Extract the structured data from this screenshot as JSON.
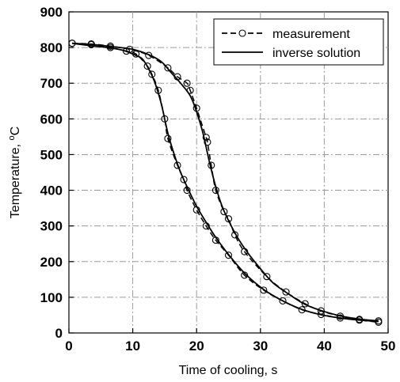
{
  "chart_data": {
    "type": "line",
    "xlabel": "Time of cooling, s",
    "ylabel_main": "Temperature, ",
    "ylabel_sup": "o",
    "ylabel_unit": "C",
    "xlim": [
      0,
      50
    ],
    "ylim": [
      0,
      900
    ],
    "x_ticks": [
      0,
      10,
      20,
      30,
      40,
      50
    ],
    "y_ticks": [
      0,
      100,
      200,
      300,
      400,
      500,
      600,
      700,
      800,
      900
    ],
    "grid": true,
    "legend_position": "top-right",
    "legend": [
      {
        "label": "measurement",
        "style": "dashed-circle"
      },
      {
        "label": "inverse solution",
        "style": "solid"
      }
    ],
    "series": [
      {
        "name": "measurement",
        "curve": "early",
        "points": [
          [
            0.5,
            812
          ],
          [
            3.5,
            808
          ],
          [
            6.5,
            800
          ],
          [
            9,
            790
          ],
          [
            10.5,
            782
          ],
          [
            12.3,
            748
          ],
          [
            13,
            725
          ],
          [
            14,
            680
          ],
          [
            15,
            600
          ],
          [
            15.5,
            545
          ],
          [
            17,
            470
          ],
          [
            18,
            430
          ],
          [
            18.5,
            400
          ],
          [
            20,
            345
          ],
          [
            21.5,
            300
          ],
          [
            23,
            260
          ],
          [
            25,
            218
          ],
          [
            27.5,
            162
          ],
          [
            30.5,
            120
          ],
          [
            33.5,
            90
          ],
          [
            36.5,
            65
          ],
          [
            39.5,
            52
          ],
          [
            42.5,
            42
          ],
          [
            45.5,
            36
          ],
          [
            48.5,
            30
          ]
        ]
      },
      {
        "name": "measurement",
        "curve": "late",
        "points": [
          [
            0.5,
            812
          ],
          [
            3.5,
            810
          ],
          [
            6.5,
            804
          ],
          [
            9.5,
            795
          ],
          [
            12.5,
            778
          ],
          [
            15.5,
            743
          ],
          [
            17,
            718
          ],
          [
            18.5,
            700
          ],
          [
            19,
            680
          ],
          [
            20,
            630
          ],
          [
            21.5,
            548
          ],
          [
            21.7,
            535
          ],
          [
            22.3,
            470
          ],
          [
            23,
            400
          ],
          [
            24.3,
            340
          ],
          [
            25,
            320
          ],
          [
            26,
            275
          ],
          [
            27.5,
            228
          ],
          [
            31,
            158
          ],
          [
            34,
            115
          ],
          [
            37,
            82
          ],
          [
            39.5,
            62
          ],
          [
            42.5,
            47
          ],
          [
            45.5,
            38
          ],
          [
            48.5,
            34
          ]
        ]
      },
      {
        "name": "inverse solution",
        "curve": "early",
        "points": [
          [
            0.5,
            812
          ],
          [
            3,
            806
          ],
          [
            6,
            800
          ],
          [
            8.5,
            792
          ],
          [
            10.5,
            778
          ],
          [
            11.5,
            768
          ],
          [
            12.5,
            740
          ],
          [
            13.5,
            700
          ],
          [
            14.5,
            640
          ],
          [
            15.5,
            560
          ],
          [
            16.5,
            500
          ],
          [
            17.5,
            450
          ],
          [
            18.5,
            410
          ],
          [
            20,
            355
          ],
          [
            21.5,
            310
          ],
          [
            23,
            268
          ],
          [
            25,
            220
          ],
          [
            27.5,
            168
          ],
          [
            30.5,
            122
          ],
          [
            33.5,
            90
          ],
          [
            36.5,
            66
          ],
          [
            39.5,
            51
          ],
          [
            42.5,
            42
          ],
          [
            45.5,
            36
          ],
          [
            48.5,
            32
          ]
        ]
      },
      {
        "name": "inverse solution",
        "curve": "late",
        "points": [
          [
            0.5,
            812
          ],
          [
            4,
            808
          ],
          [
            7,
            802
          ],
          [
            10,
            795
          ],
          [
            12.5,
            780
          ],
          [
            14.5,
            760
          ],
          [
            16,
            730
          ],
          [
            17.5,
            700
          ],
          [
            19,
            665
          ],
          [
            20,
            620
          ],
          [
            21,
            560
          ],
          [
            22,
            480
          ],
          [
            23,
            410
          ],
          [
            24,
            355
          ],
          [
            25,
            315
          ],
          [
            26.5,
            265
          ],
          [
            28,
            225
          ],
          [
            30,
            180
          ],
          [
            32,
            140
          ],
          [
            34.5,
            108
          ],
          [
            37,
            80
          ],
          [
            40,
            60
          ],
          [
            43,
            46
          ],
          [
            46,
            38
          ],
          [
            48.5,
            34
          ]
        ]
      }
    ]
  }
}
